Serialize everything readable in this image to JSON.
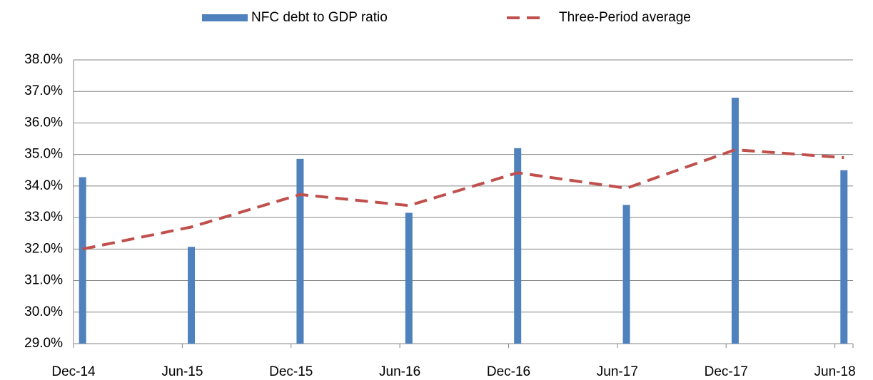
{
  "chart_data": {
    "type": "bar-line",
    "categories": [
      "Dec-14",
      "Jun-15",
      "Dec-15",
      "Jun-16",
      "Dec-16",
      "Jun-17",
      "Dec-17",
      "Jun-18"
    ],
    "series": [
      {
        "name": "NFC debt to GDP ratio",
        "type": "bar",
        "color": "#4f81bd",
        "values": [
          34.28,
          32.07,
          34.86,
          33.15,
          35.2,
          33.4,
          36.8,
          34.5
        ]
      },
      {
        "name": "Three-Period average",
        "type": "line",
        "dashed": true,
        "color": "#c0504d",
        "values": [
          32.0,
          32.7,
          33.73,
          33.38,
          34.42,
          33.93,
          35.15,
          34.9
        ]
      }
    ],
    "ylim": [
      29,
      38
    ],
    "yticks": [
      {
        "value": 29,
        "label": "29.0%"
      },
      {
        "value": 30,
        "label": "30.0%"
      },
      {
        "value": 31,
        "label": "31.0%"
      },
      {
        "value": 32,
        "label": "32.0%"
      },
      {
        "value": 33,
        "label": "33.0%"
      },
      {
        "value": 34,
        "label": "34.0%"
      },
      {
        "value": 35,
        "label": "35.0%"
      },
      {
        "value": 36,
        "label": "36.0%"
      },
      {
        "value": 37,
        "label": "37.0%"
      },
      {
        "value": 38,
        "label": "38.0%"
      }
    ],
    "grid": true,
    "legend": "top"
  }
}
